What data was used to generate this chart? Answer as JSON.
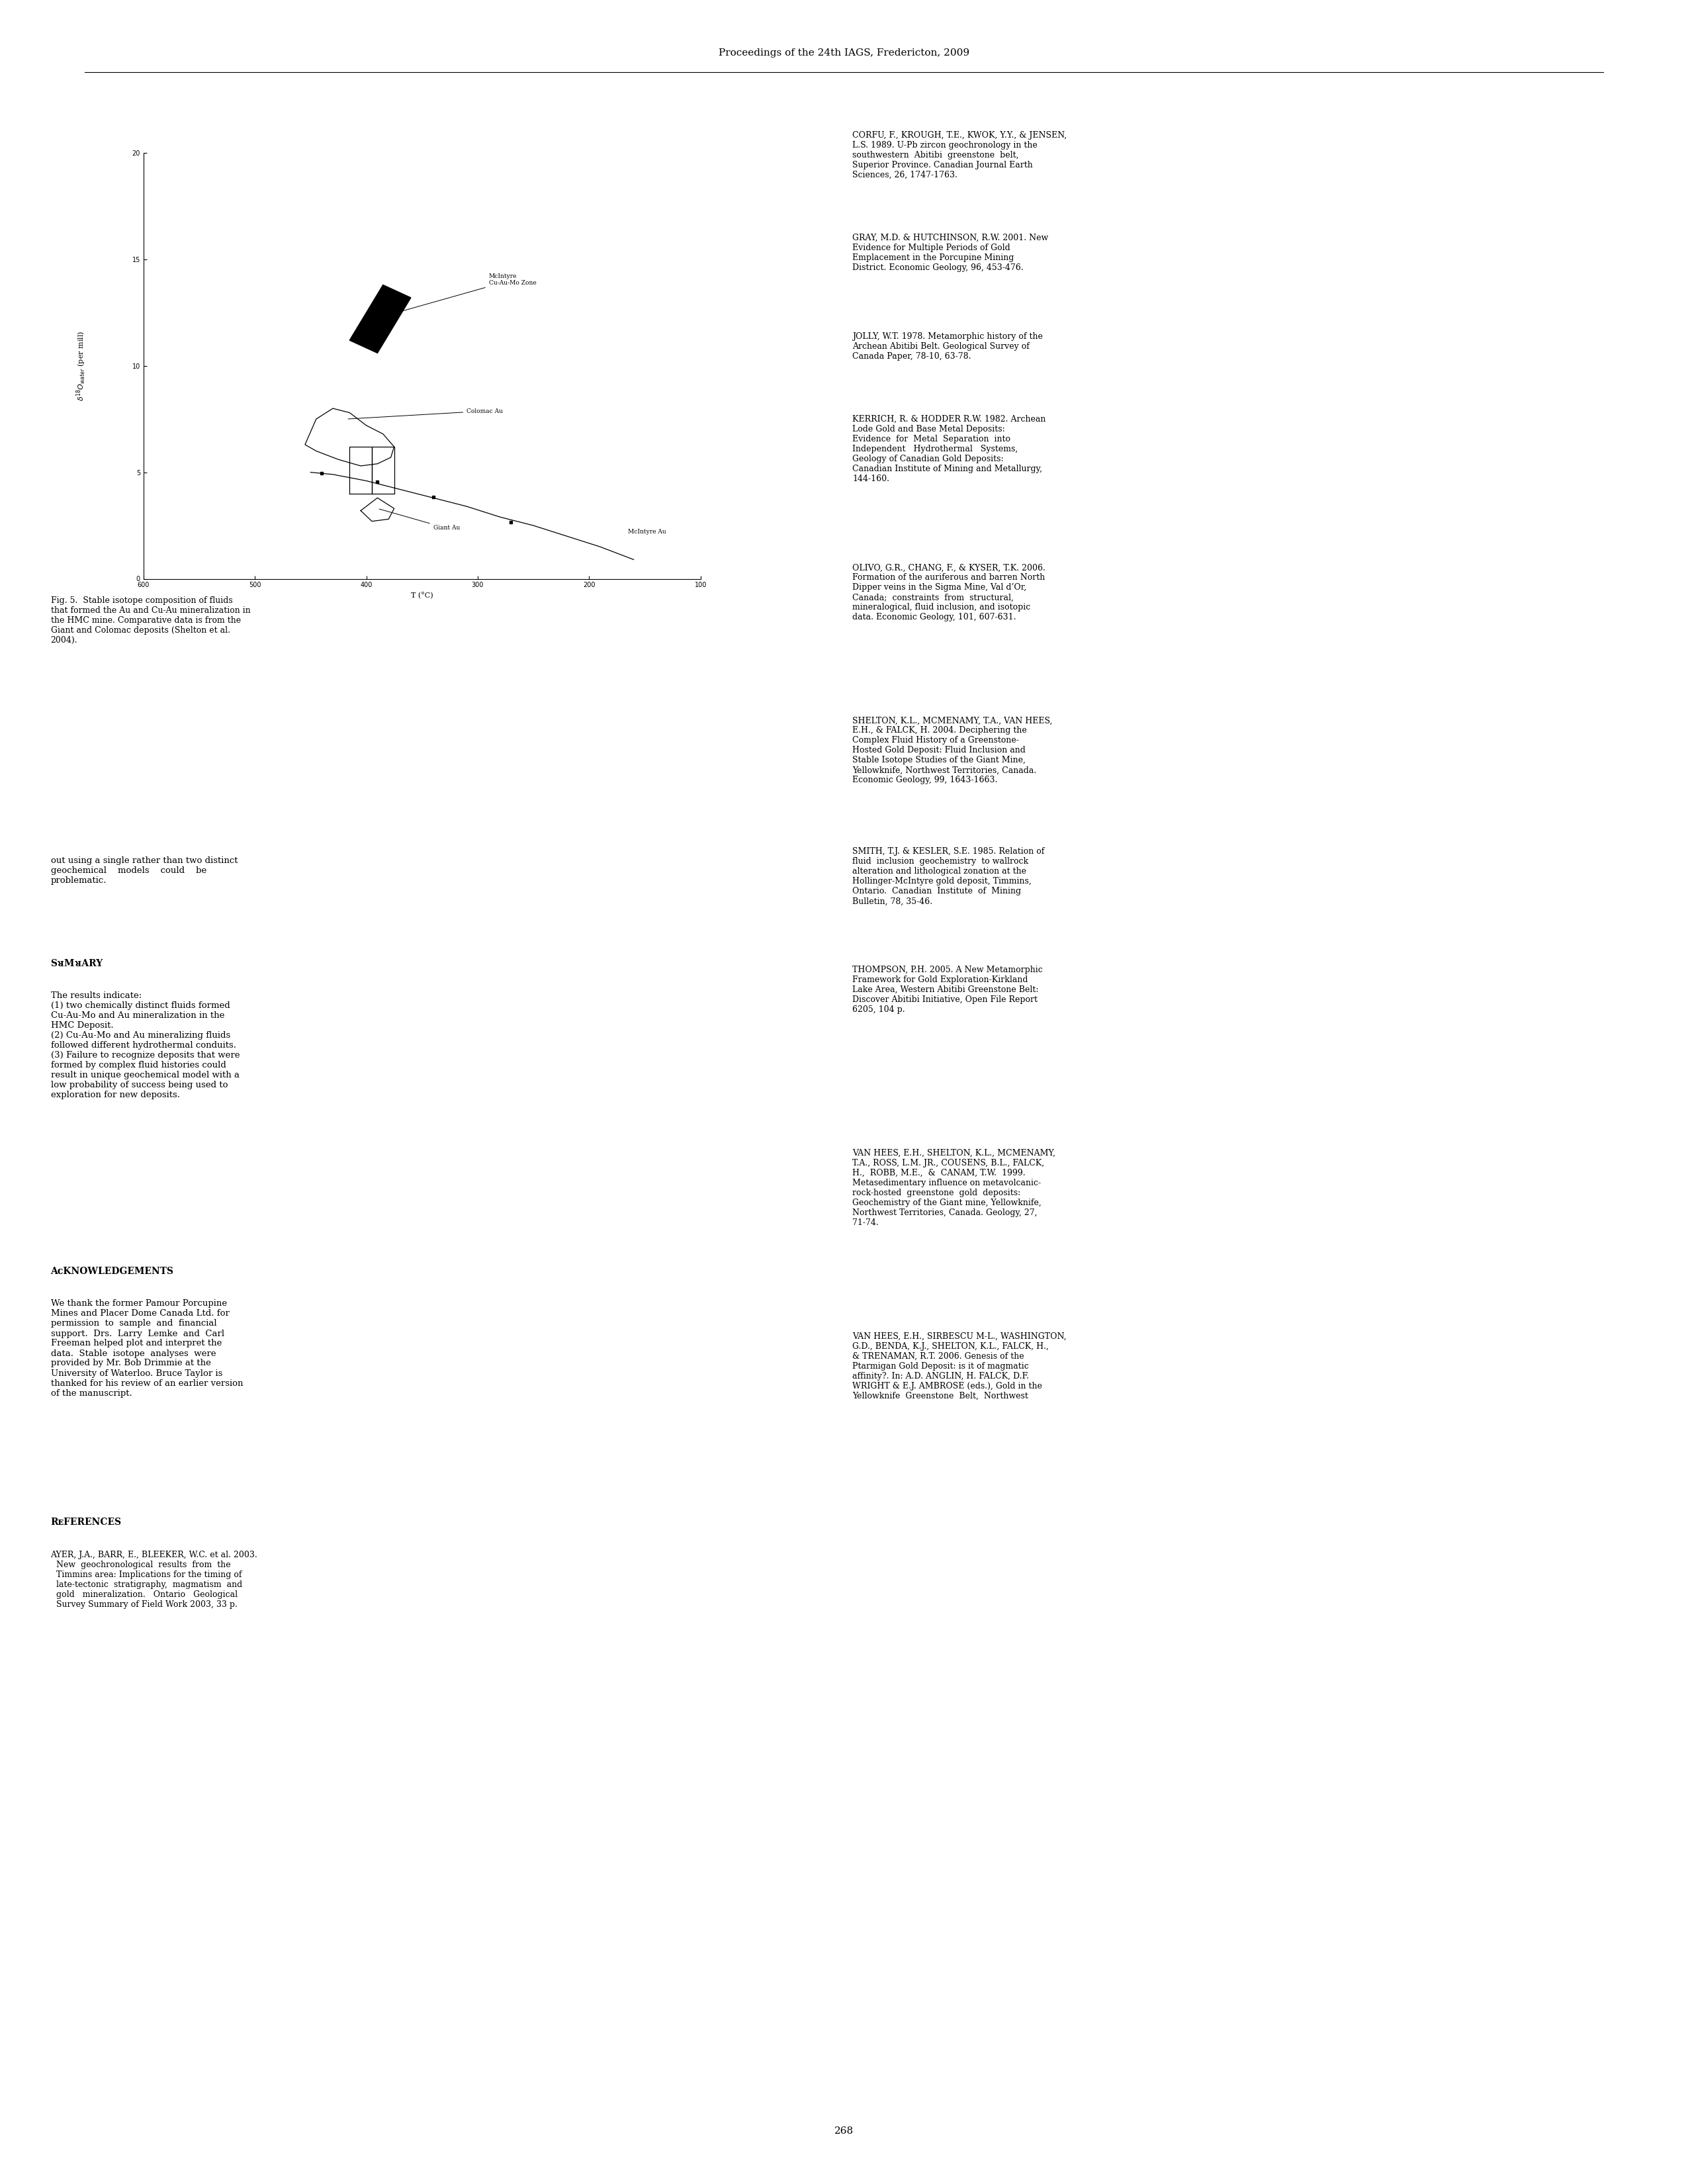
{
  "page_title": "Proceedings of the 24th IAGS, Fredericton, 2009",
  "page_number": "268",
  "chart": {
    "xlim": [
      100,
      600
    ],
    "ylim": [
      0,
      20
    ],
    "xlabel": "T (°C)",
    "xticks": [
      100,
      200,
      300,
      400,
      500,
      600
    ],
    "yticks": [
      0,
      5,
      10,
      15,
      20
    ]
  },
  "right_col_refs": [
    "CORFU, F., KROUGH, T.E., KWOK, Y.Y., & JENSEN,\nL.S. 1989. U-Pb zircon geochronology in the\nsouthwestern  Abitibi  greenstone  belt,\nSuperior Province. Canadian Journal Earth\nSciences, 26, 1747-1763.",
    "GRAY, M.D. & HUTCHINSON, R.W. 2001. New\nEvidence for Multiple Periods of Gold\nEmplacement in the Porcupine Mining\nDistrict. Economic Geology, 96, 453-476.",
    "JOLLY, W.T. 1978. Metamorphic history of the\nArchean Abitibi Belt. Geological Survey of\nCanada Paper, 78-10, 63-78.",
    "KERRICH, R. & HODDER R.W. 1982. Archean\nLode Gold and Base Metal Deposits:\nEvidence  for  Metal  Separation  into\nIndependent   Hydrothermal   Systems,\nGeology of Canadian Gold Deposits:\nCanadian Institute of Mining and Metallurgy,\n144-160.",
    "OLIVO, G.R., CHANG, F., & KYSER, T.K. 2006.\nFormation of the auriferous and barren North\nDipper veins in the Sigma Mine, Val d’Or,\nCanada;  constraints  from  structural,\nmineralogical, fluid inclusion, and isotopic\ndata. Economic Geology, 101, 607-631.",
    "SHELTON, K.L., MCMENAMY, T.A., VAN HEES,\nE.H., & FALCK, H. 2004. Deciphering the\nComplex Fluid History of a Greenstone-\nHosted Gold Deposit: Fluid Inclusion and\nStable Isotope Studies of the Giant Mine,\nYellowknife, Northwest Territories, Canada.\nEconomic Geology, 99, 1643-1663.",
    "SMITH, T.J. & KESLER, S.E. 1985. Relation of\nfluid  inclusion  geochemistry  to wallrock\nalteration and lithological zonation at the\nHollinger-McIntyre gold deposit, Timmins,\nOntario.  Canadian  Institute  of  Mining\nBulletin, 78, 35-46.",
    "THOMPSON, P.H. 2005. A New Metamorphic\nFramework for Gold Exploration-Kirkland\nLake Area, Western Abitibi Greenstone Belt:\nDiscover Abitibi Initiative, Open File Report\n6205, 104 p.",
    "VAN HEES, E.H., SHELTON, K.L., MCMENAMY,\nT.A., ROSS, L.M. JR., COUSENS, B.L., FALCK,\nH.,  ROBB, M.E.,  &  CANAM, T.W.  1999.\nMetasedimentary influence on metavolcanic-\nrock-hosted  greenstone  gold  deposits:\nGeochemistry of the Giant mine, Yellowknife,\nNorthwest Territories, Canada. Geology, 27,\n71-74.",
    "VAN HEES, E.H., SIRBESCU M-L., WASHINGTON,\nG.D., BENDA, K.J., SHELTON, K.L., FALCK, H.,\n& TRENAMAN, R.T. 2006. Genesis of the\nPtarmigan Gold Deposit: is it of magmatic\naffinity?. In: A.D. ANGLIN, H. FALCK, D.F.\nWRIGHT & E.J. AMBROSE (eds.), Gold in the\nYellowknife  Greenstone  Belt,  Northwest"
  ]
}
